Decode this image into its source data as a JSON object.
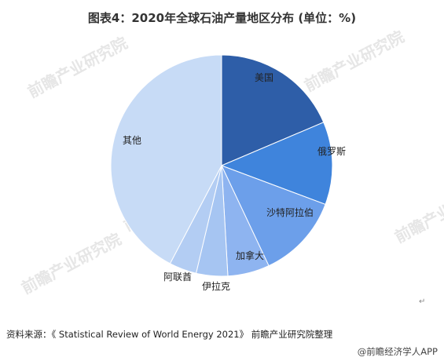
{
  "header": {
    "title": "图表4：2020年全球石油产量地区分布 (单位：%)"
  },
  "watermark": {
    "brand": "前瞻产业研究院"
  },
  "chart_data": {
    "type": "pie",
    "title": "图表4：2020年全球石油产量地区分布 (单位：%)",
    "slices": [
      {
        "label": "美国",
        "value": 18.6,
        "color": "#2E5EA8"
      },
      {
        "label": "俄罗斯",
        "value": 12.1,
        "color": "#3F84DC"
      },
      {
        "label": "沙特阿拉伯",
        "value": 12.3,
        "color": "#6C9FEA"
      },
      {
        "label": "加拿大",
        "value": 6.1,
        "color": "#8EB4F0"
      },
      {
        "label": "伊拉克",
        "value": 4.6,
        "color": "#A6C5F2"
      },
      {
        "label": "阿联酋",
        "value": 4.0,
        "color": "#B3CDF3"
      },
      {
        "label": "其他",
        "value": 42.3,
        "color": "#C7DBF6"
      }
    ]
  },
  "source": {
    "text": "资料来源：《 Statistical Review of World Energy 2021》 前瞻产业研究院整理"
  },
  "footer": {
    "text": "@前瞻经济学人APP"
  },
  "misc": {
    "return_mark": "↵"
  }
}
